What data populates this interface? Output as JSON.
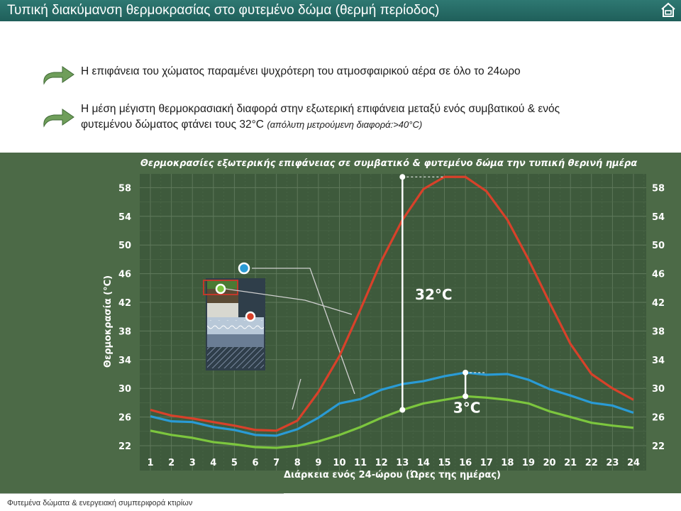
{
  "header": {
    "title": "Τυπική διακύμανση θερμοκρασίας στο φυτεμένο δώμα (θερμή περίοδος)"
  },
  "bullets": [
    {
      "line1": "Η επιφάνεια του χώματος παραμένει ψυχρότερη του ατμοσφαιρικού αέρα σε όλο το 24ωρο"
    },
    {
      "line1": "Η μέση μέγιστη θερμοκρασιακή διαφορά στην εξωτερική επιφάνεια μεταξύ ενός συμβατικού & ενός",
      "line2_main": "φυτεμένου δώματος φτάνει τους 32°C",
      "line2_note": "(απόλυτη μετρούμενη διαφορά:>40°C)"
    }
  ],
  "footer": {
    "text": "Φυτεμένα δώματα & ενεργειακή συμπεριφορά κτιρίων"
  },
  "colors": {
    "conventional": "#d8412a",
    "air": "#2a9bd5",
    "green_roof": "#7cc63e",
    "panel": "#4c6a47",
    "title_bar": "#2e7872"
  },
  "chart_data": {
    "type": "line",
    "title": "Θερμοκρασίες εξωτερικής επιφάνειας σε συμβατικό & φυτεμένο δώμα την τυπική θερινή ημέρα",
    "xlabel": "Διάρκεια ενός 24-ώρου (Ώρες της ημέρας)",
    "ylabel": "Θερμοκρασία (°C)",
    "x": [
      1,
      2,
      3,
      4,
      5,
      6,
      7,
      8,
      9,
      10,
      11,
      12,
      13,
      14,
      15,
      16,
      17,
      18,
      19,
      20,
      21,
      22,
      23,
      24
    ],
    "yticks": [
      22,
      26,
      30,
      34,
      38,
      42,
      46,
      50,
      54,
      58
    ],
    "ylim": [
      22,
      59
    ],
    "grid": true,
    "series": [
      {
        "key": "conventional",
        "values": [
          27,
          26.2,
          25.8,
          25.3,
          24.8,
          24.2,
          24.1,
          25.5,
          29.5,
          34.5,
          41,
          47.8,
          53.5,
          57.8,
          59.5,
          59.5,
          57.5,
          53.5,
          48,
          42,
          36.2,
          32,
          30,
          28.4
        ]
      },
      {
        "key": "air",
        "values": [
          26.1,
          25.4,
          25.3,
          24.6,
          24.2,
          23.5,
          23.4,
          24.3,
          25.9,
          27.9,
          28.5,
          29.8,
          30.6,
          31,
          31.7,
          32.2,
          31.9,
          32,
          31.2,
          29.9,
          29,
          28,
          27.6,
          26.6
        ]
      },
      {
        "key": "green_roof",
        "values": [
          24.1,
          23.5,
          23.1,
          22.5,
          22.2,
          21.8,
          21.7,
          22,
          22.6,
          23.5,
          24.6,
          25.9,
          27,
          27.9,
          28.4,
          28.9,
          28.7,
          28.4,
          27.9,
          26.8,
          26,
          25.2,
          24.8,
          24.5
        ]
      }
    ],
    "annotations": [
      {
        "label": "32°C",
        "hour": 13,
        "from": 27,
        "to": 59.5
      },
      {
        "label": "3°C",
        "hour": 16,
        "from": 28.9,
        "to": 32.2
      }
    ]
  }
}
